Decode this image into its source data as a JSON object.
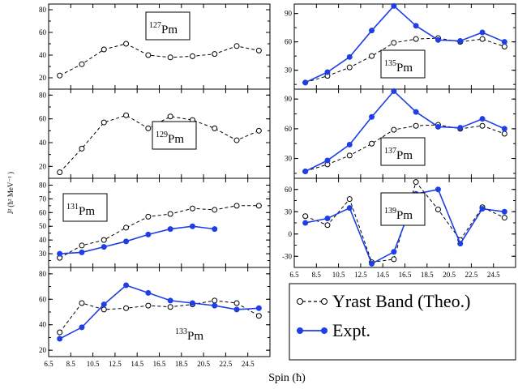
{
  "figure": {
    "xlabel": "Spin (ħ)",
    "ylabel": "J² (ħ² MeV⁻¹ )",
    "legend": [
      {
        "label": "Yrast Band (Theo.)",
        "style": "dashed-open-circle",
        "color": "#000000"
      },
      {
        "label": "Expt.",
        "style": "solid-filled-circle",
        "color": "#1f3fe6"
      }
    ]
  },
  "chart_data": [
    {
      "type": "line",
      "panel": "left-1",
      "isotope_mass": "127",
      "isotope_symbol": "Pm",
      "xlim": [
        6.5,
        26.5
      ],
      "ylim": [
        10,
        85
      ],
      "yticks": [
        "20",
        "40",
        "60",
        "80"
      ],
      "xticks": [],
      "grid": false,
      "series": [
        {
          "name": "Yrast Band (Theo.)",
          "x": [
            7.5,
            9.5,
            11.5,
            13.5,
            15.5,
            17.5,
            19.5,
            21.5,
            23.5,
            25.5
          ],
          "y": [
            22,
            32,
            45,
            50,
            40,
            38,
            39,
            41,
            48,
            44
          ]
        }
      ]
    },
    {
      "type": "line",
      "panel": "left-2",
      "isotope_mass": "129",
      "isotope_symbol": "Pm",
      "xlim": [
        6.5,
        26.5
      ],
      "ylim": [
        10,
        85
      ],
      "yticks": [
        "20",
        "40",
        "60",
        "80"
      ],
      "xticks": [],
      "grid": false,
      "series": [
        {
          "name": "Yrast Band (Theo.)",
          "x": [
            7.5,
            9.5,
            11.5,
            13.5,
            15.5,
            17.5,
            19.5,
            21.5,
            23.5,
            25.5
          ],
          "y": [
            15,
            35,
            57,
            63,
            52,
            62,
            59,
            52,
            42,
            50
          ]
        }
      ]
    },
    {
      "type": "line",
      "panel": "left-3",
      "isotope_mass": "131",
      "isotope_symbol": "Pm",
      "xlim": [
        6.5,
        26.5
      ],
      "ylim": [
        20,
        85
      ],
      "yticks": [
        "30",
        "40",
        "50",
        "60",
        "70",
        "80"
      ],
      "xticks": [],
      "grid": false,
      "series": [
        {
          "name": "Yrast Band (Theo.)",
          "x": [
            7.5,
            9.5,
            11.5,
            13.5,
            15.5,
            17.5,
            19.5,
            21.5,
            23.5,
            25.5
          ],
          "y": [
            27,
            36,
            40,
            49,
            57,
            59,
            63,
            62,
            65,
            65
          ]
        },
        {
          "name": "Expt.",
          "x": [
            7.5,
            9.5,
            11.5,
            13.5,
            15.5,
            17.5,
            19.5,
            21.5
          ],
          "y": [
            30,
            31,
            35,
            39,
            44,
            48,
            50,
            48
          ]
        }
      ]
    },
    {
      "type": "line",
      "panel": "left-4",
      "isotope_mass": "133",
      "isotope_symbol": "Pm",
      "xlim": [
        6.5,
        26.5
      ],
      "ylim": [
        15,
        85
      ],
      "yticks": [
        "20",
        "40",
        "60",
        "80"
      ],
      "xticks": [
        "6.5",
        "8.5",
        "10.5",
        "12.5",
        "14.5",
        "16.5",
        "18.5",
        "20.5",
        "22.5",
        "24.5"
      ],
      "grid": false,
      "series": [
        {
          "name": "Yrast Band (Theo.)",
          "x": [
            7.5,
            9.5,
            11.5,
            13.5,
            15.5,
            17.5,
            19.5,
            21.5,
            23.5,
            25.5
          ],
          "y": [
            34,
            57,
            52,
            53,
            55,
            54,
            56,
            59,
            57,
            47
          ]
        },
        {
          "name": "Expt.",
          "x": [
            7.5,
            9.5,
            11.5,
            13.5,
            15.5,
            17.5,
            19.5,
            21.5,
            23.5,
            25.5
          ],
          "y": [
            29,
            38,
            56,
            71,
            65,
            59,
            57,
            55,
            52,
            53
          ]
        }
      ]
    },
    {
      "type": "line",
      "panel": "right-1",
      "isotope_mass": "135",
      "isotope_symbol": "Pm",
      "xlim": [
        6.5,
        26.5
      ],
      "ylim": [
        10,
        100
      ],
      "yticks": [
        "30",
        "60",
        "90"
      ],
      "xticks": [],
      "grid": false,
      "series": [
        {
          "name": "Yrast Band (Theo.)",
          "x": [
            7.5,
            9.5,
            11.5,
            13.5,
            15.5,
            17.5,
            19.5,
            21.5,
            23.5,
            25.5
          ],
          "y": [
            17,
            24,
            33,
            45,
            59,
            63,
            64,
            60,
            63,
            55
          ]
        },
        {
          "name": "Expt.",
          "x": [
            7.5,
            9.5,
            11.5,
            13.5,
            15.5,
            17.5,
            19.5,
            21.5,
            23.5,
            25.5
          ],
          "y": [
            17,
            28,
            44,
            72,
            98,
            77,
            62,
            61,
            70,
            60
          ]
        }
      ]
    },
    {
      "type": "line",
      "panel": "right-2",
      "isotope_mass": "137",
      "isotope_symbol": "Pm",
      "xlim": [
        6.5,
        26.5
      ],
      "ylim": [
        10,
        100
      ],
      "yticks": [
        "30",
        "60",
        "90"
      ],
      "xticks": [],
      "grid": false,
      "series": [
        {
          "name": "Yrast Band (Theo.)",
          "x": [
            7.5,
            9.5,
            11.5,
            13.5,
            15.5,
            17.5,
            19.5,
            21.5,
            23.5,
            25.5
          ],
          "y": [
            17,
            24,
            33,
            45,
            59,
            63,
            64,
            60,
            63,
            55
          ]
        },
        {
          "name": "Expt.",
          "x": [
            7.5,
            9.5,
            11.5,
            13.5,
            15.5,
            17.5,
            19.5,
            21.5,
            23.5,
            25.5
          ],
          "y": [
            17,
            28,
            44,
            72,
            98,
            77,
            62,
            61,
            70,
            60
          ]
        }
      ]
    },
    {
      "type": "line",
      "panel": "right-3",
      "isotope_mass": "139",
      "isotope_symbol": "Pm",
      "xlim": [
        6.5,
        26.5
      ],
      "ylim": [
        -45,
        75
      ],
      "yticks": [
        "-30",
        "0",
        "30",
        "60"
      ],
      "xticks": [
        "6.5",
        "8.5",
        "10.5",
        "12.5",
        "14.5",
        "16.5",
        "18.5",
        "20.5",
        "22.5",
        "24.5"
      ],
      "grid": false,
      "series": [
        {
          "name": "Yrast Band (Theo.)",
          "x": [
            7.5,
            9.5,
            11.5,
            13.5,
            15.5,
            17.5,
            19.5,
            21.5,
            23.5,
            25.5
          ],
          "y": [
            24,
            12,
            47,
            -38,
            -34,
            70,
            33,
            -8,
            36,
            22
          ]
        },
        {
          "name": "Expt.",
          "x": [
            7.5,
            9.5,
            11.5,
            13.5,
            15.5,
            17.5,
            19.5,
            21.5,
            23.5,
            25.5
          ],
          "y": [
            15,
            21,
            35,
            -40,
            -24,
            54,
            60,
            -13,
            34,
            30
          ]
        }
      ]
    }
  ]
}
